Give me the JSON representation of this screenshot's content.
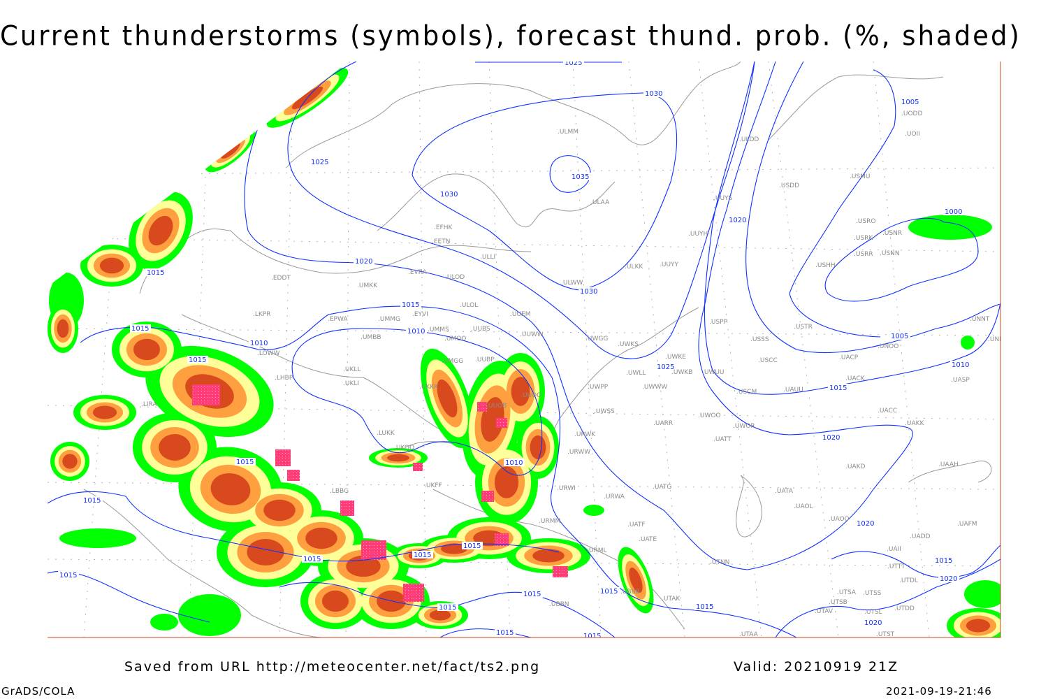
{
  "title": "Current thunderstorms (symbols), forecast thund. prob. (%, shaded)",
  "footer": {
    "source": "Saved from URL http://meteocenter.net/fact/ts2.png",
    "valid": "Valid: 20210919 21Z",
    "software": "GrADS/COLA",
    "timestamp": "2021-09-19-21:46"
  },
  "colors": {
    "isobar": "#1030ff",
    "coast": "#9a9a9a",
    "prob_low": "#00ff00",
    "prob_mid": "#ffff99",
    "prob_high": "#ffa040",
    "prob_very_high": "#d84a1e",
    "thunderstorm_symbol": "#ff3c78",
    "frame": "#c84a1e"
  },
  "isobar_labels": [
    "1025",
    "1030",
    "1035",
    "1030",
    "1030",
    "1025",
    "1020",
    "1020",
    "1015",
    "1010",
    "1015",
    "1015",
    "1010",
    "1015",
    "1015",
    "1015",
    "1015",
    "1015",
    "1015",
    "1015",
    "1010",
    "1015",
    "1015",
    "1015",
    "1025",
    "1020",
    "1020",
    "1015",
    "1010",
    "1005",
    "1005",
    "1000",
    "1020",
    "1015",
    "1020",
    "1015",
    "1015",
    "1015"
  ],
  "stations": [
    "ULMM",
    "ULDD",
    "USDD",
    "USMU",
    "UODD",
    "UOII",
    "ULAA",
    "UUYS",
    "UUYH",
    "USRO",
    "USRK",
    "USNR",
    "USRR",
    "USNN",
    "USHH",
    "ULKK",
    "UUYY",
    "ULWW",
    "EFHK",
    "EETN",
    "ULLI",
    "EVRA",
    "ULOD",
    "EDDT",
    "UMKK",
    "ULOL",
    "UUEM",
    "EYVI",
    "UMMG",
    "EPWA",
    "LKPR",
    "UMMS",
    "UMOO",
    "UUBS",
    "UUWW",
    "UMBB",
    "UWGG",
    "UWKS",
    "UWKE",
    "USPP",
    "USTR",
    "USSS",
    "UNOO",
    "UNNT",
    "UNBB",
    "USCC",
    "UACP",
    "UACK",
    "UASP",
    "UMGG",
    "UUBP",
    "LOWW",
    "UKLL",
    "UKLI",
    "LHBP",
    "UWLL",
    "UWKB",
    "UWUU",
    "UWPP",
    "UWWW",
    "USCM",
    "UAUU",
    "UKKK",
    "UUOO",
    "UUOB",
    "LIRA",
    "UWSS",
    "UARR",
    "UWOO",
    "UWOR",
    "UATT",
    "UACC",
    "UAKK",
    "LUKK",
    "UKOO",
    "URWW",
    "URWK",
    "UAKD",
    "UAAH",
    "UKFF",
    "URWI",
    "UATG",
    "URWA",
    "UATA",
    "UAOL",
    "UAOO",
    "URMM",
    "UATF",
    "UATE",
    "UADD",
    "UAFM",
    "UAII",
    "URML",
    "UTTT",
    "UTDL",
    "UBBB",
    "UBBN",
    "UTAK",
    "UTSA",
    "UTSB",
    "UTSS",
    "UTAV",
    "UTSL",
    "UTDD",
    "UTAA",
    "UTST",
    "UTNN",
    "LBBG"
  ]
}
